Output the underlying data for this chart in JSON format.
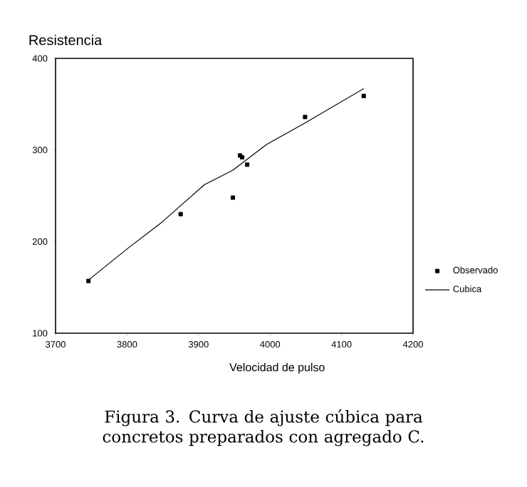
{
  "chart_data": {
    "type": "scatter",
    "ylabel": "Resistencia",
    "xlabel": "Velocidad de pulso",
    "annotations": [
      "Figura 3. Curva de ajuste cúbica para concretos preparados con agregado C."
    ],
    "xlim": [
      3700,
      4200
    ],
    "xticks": [
      3700,
      3800,
      3900,
      4000,
      4100,
      4200
    ],
    "ylim": [
      100,
      400
    ],
    "yticks": [
      100,
      200,
      300,
      400
    ],
    "grid": false,
    "legend": "right",
    "series": [
      {
        "name": "Observado",
        "marker": "square",
        "color": "#000000",
        "x": [
          3746,
          3875,
          3948,
          3958,
          3961,
          3968,
          4049,
          4131
        ],
        "values": [
          157,
          230,
          248,
          294,
          292,
          284,
          336,
          359
        ]
      },
      {
        "name": "Cubica",
        "type": "line",
        "marker": "none",
        "line_style": "solid",
        "color": "#000000",
        "x": [
          3746,
          3800,
          3847,
          3908,
          3948,
          3995,
          4048,
          4131
        ],
        "values": [
          158,
          192,
          220,
          262,
          278,
          306,
          329,
          367
        ]
      }
    ]
  }
}
